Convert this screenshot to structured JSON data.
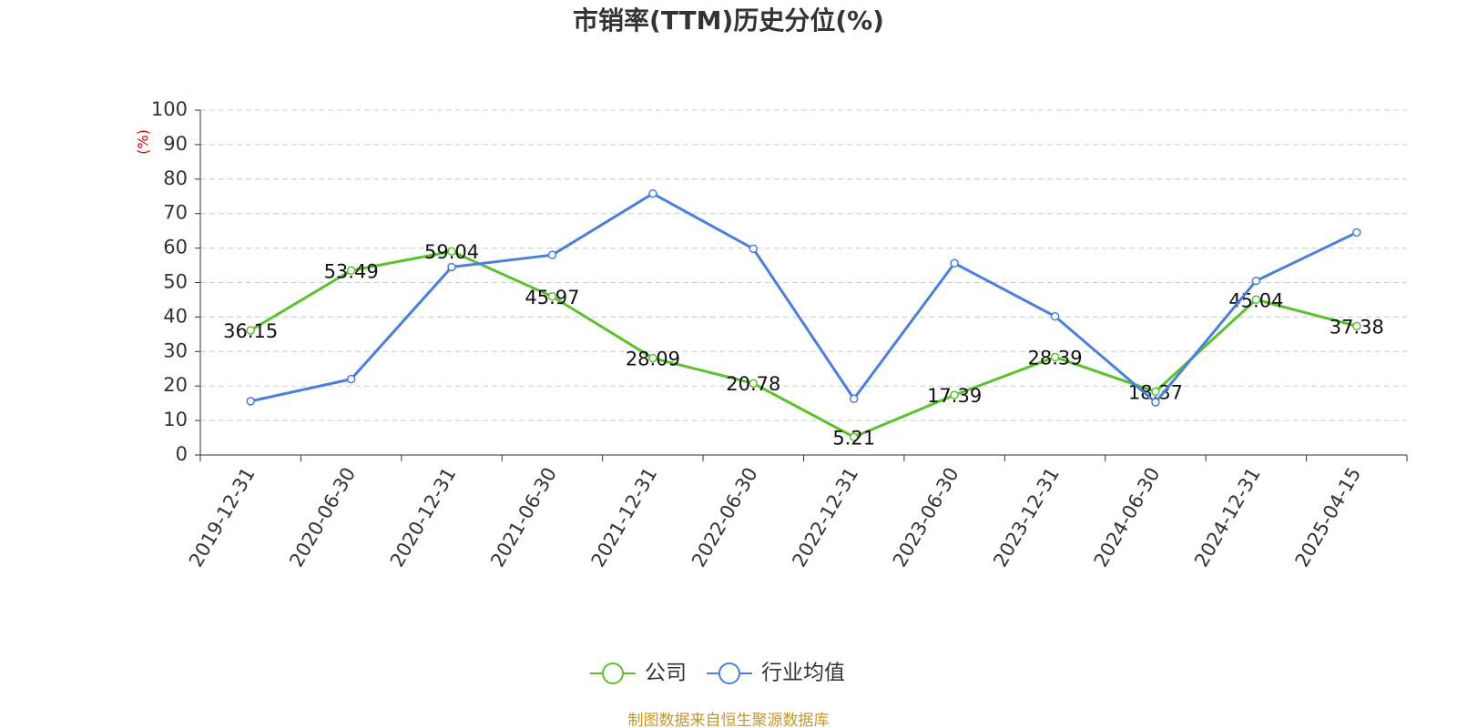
{
  "chart_data": {
    "type": "line",
    "title": "市销率(TTM)历史分位(%)",
    "y_label": "(%)",
    "source": "制图数据来自恒生聚源数据库",
    "categories": [
      "2019-12-31",
      "2020-06-30",
      "2020-12-31",
      "2021-06-30",
      "2021-12-31",
      "2022-06-30",
      "2022-12-31",
      "2023-06-30",
      "2023-12-31",
      "2024-06-30",
      "2024-12-31",
      "2025-04-15"
    ],
    "series": [
      {
        "name": "公司",
        "color": "#5bc12d",
        "values": [
          36.15,
          53.49,
          59.04,
          45.97,
          28.09,
          20.78,
          5.21,
          17.39,
          28.39,
          18.37,
          45.04,
          37.38
        ]
      },
      {
        "name": "行业均值",
        "color": "#4a7fdc",
        "values": [
          15.6,
          22.0,
          54.5,
          58.0,
          75.8,
          59.8,
          16.3,
          55.6,
          40.2,
          15.3,
          50.5,
          64.5
        ]
      }
    ],
    "ylim": [
      0,
      100
    ],
    "yticks": [
      0,
      10,
      20,
      30,
      40,
      50,
      60,
      70,
      80,
      90,
      100
    ],
    "grid": true,
    "legend": "bottom"
  }
}
